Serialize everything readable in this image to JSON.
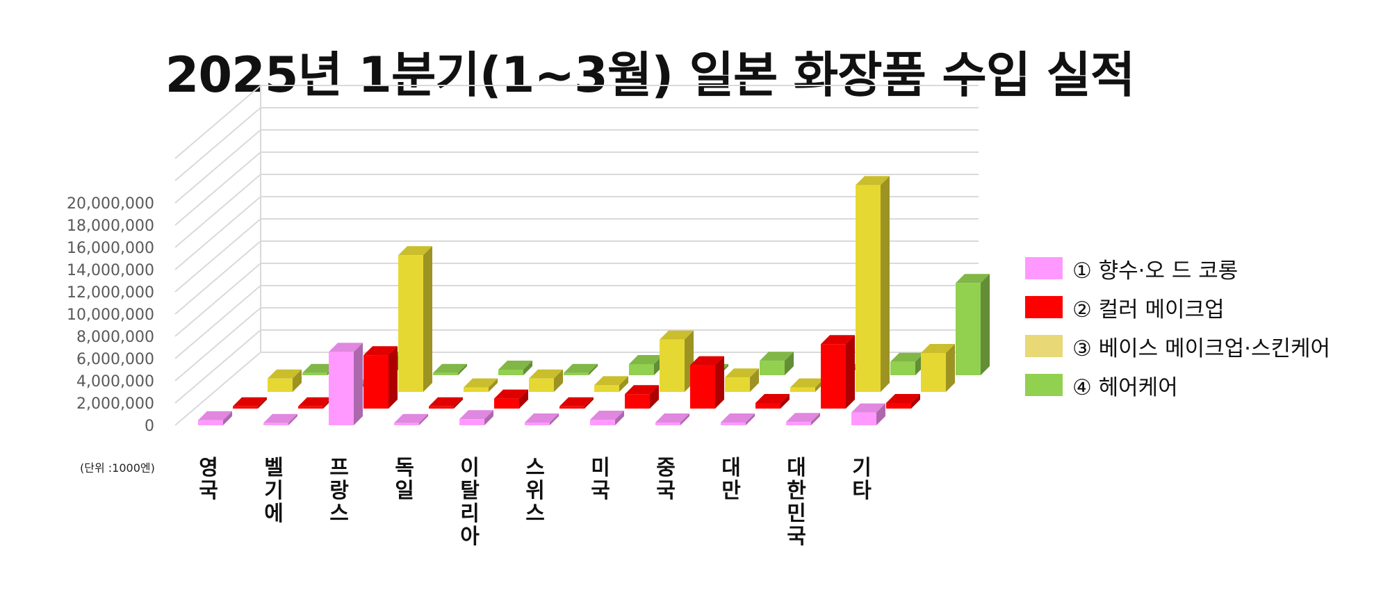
{
  "chart_data": {
    "type": "bar",
    "title": "2025년 1분기(1~3월) 일본 화장품 수입 실적",
    "unit_note": "(단위 :1000엔)",
    "categories": [
      "영국",
      "벨기에",
      "프랑스",
      "독일",
      "이탈리아",
      "스위스",
      "미국",
      "중국",
      "대만",
      "대한민국",
      "기타"
    ],
    "yticks": [
      "0",
      "2,000,000",
      "4,000,000",
      "6,000,000",
      "8,000,000",
      "10,000,000",
      "12,000,000",
      "14,000,000",
      "16,000,000",
      "18,000,000",
      "20,000,000"
    ],
    "ylim": [
      0,
      20000000
    ],
    "grid": true,
    "legend_position": "right",
    "series": [
      {
        "name": "① 향수·오 드 코롱",
        "color": "#ff99ff",
        "values": [
          450000,
          200000,
          6600000,
          200000,
          550000,
          250000,
          500000,
          250000,
          250000,
          300000,
          1150000
        ]
      },
      {
        "name": "② 컬러 메이크업",
        "color": "#ff0000",
        "values": [
          200000,
          200000,
          4800000,
          200000,
          900000,
          200000,
          1300000,
          3900000,
          500000,
          5800000,
          500000
        ]
      },
      {
        "name": "③ 베이스 메이크업·스킨케어",
        "color": "#e6d832",
        "values": [
          1200000,
          300000,
          12300000,
          400000,
          1200000,
          600000,
          4700000,
          1300000,
          400000,
          18600000,
          3500000
        ]
      },
      {
        "name": "④ 헤어케어",
        "color": "#92d050",
        "values": [
          200000,
          1300000,
          200000,
          500000,
          200000,
          1000000,
          200000,
          1300000,
          200000,
          1200000,
          8300000
        ]
      }
    ]
  }
}
